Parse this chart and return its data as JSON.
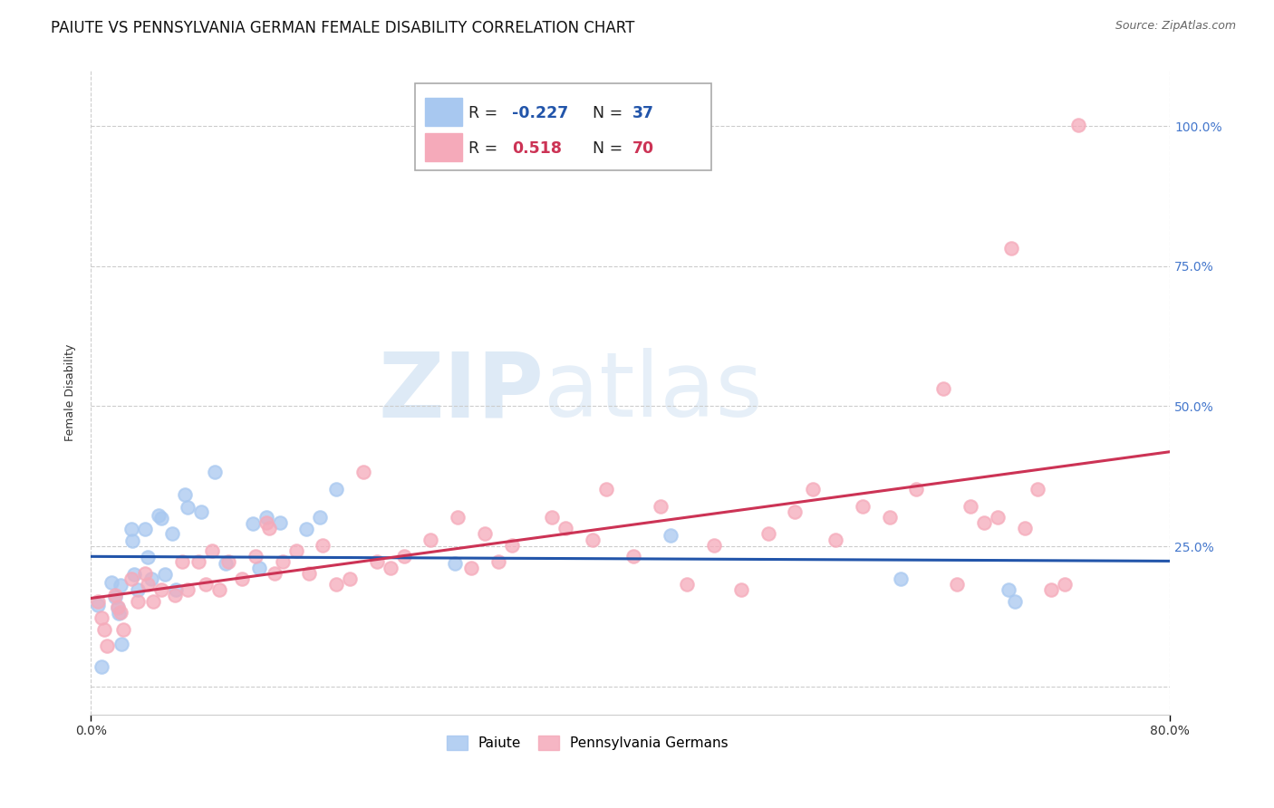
{
  "title": "PAIUTE VS PENNSYLVANIA GERMAN FEMALE DISABILITY CORRELATION CHART",
  "source": "Source: ZipAtlas.com",
  "ylabel": "Female Disability",
  "xlim": [
    0.0,
    0.8
  ],
  "ylim": [
    -0.05,
    1.1
  ],
  "paiute_color": "#A8C8F0",
  "penn_german_color": "#F5AABA",
  "paiute_line_color": "#2255AA",
  "penn_german_line_color": "#CC3355",
  "legend_paiute_label": "Paiute",
  "legend_penn_label": "Pennsylvania Germans",
  "R_paiute": "-0.227",
  "N_paiute": "37",
  "R_penn": "0.518",
  "N_penn": "70",
  "watermark_zip": "ZIP",
  "watermark_atlas": "atlas",
  "y_tick_color": "#4477CC",
  "paiute_x": [
    0.005,
    0.008,
    0.015,
    0.018,
    0.02,
    0.021,
    0.022,
    0.023,
    0.03,
    0.031,
    0.032,
    0.035,
    0.04,
    0.042,
    0.045,
    0.05,
    0.052,
    0.055,
    0.06,
    0.063,
    0.07,
    0.072,
    0.082,
    0.092,
    0.1,
    0.12,
    0.125,
    0.13,
    0.14,
    0.16,
    0.17,
    0.182,
    0.27,
    0.43,
    0.6,
    0.68,
    0.685
  ],
  "paiute_y": [
    0.145,
    0.035,
    0.185,
    0.16,
    0.14,
    0.13,
    0.18,
    0.075,
    0.28,
    0.26,
    0.2,
    0.172,
    0.28,
    0.23,
    0.192,
    0.305,
    0.3,
    0.2,
    0.272,
    0.172,
    0.342,
    0.32,
    0.312,
    0.382,
    0.22,
    0.29,
    0.212,
    0.302,
    0.292,
    0.28,
    0.302,
    0.352,
    0.22,
    0.27,
    0.192,
    0.172,
    0.152
  ],
  "penn_x": [
    0.005,
    0.008,
    0.01,
    0.012,
    0.018,
    0.02,
    0.022,
    0.024,
    0.03,
    0.035,
    0.04,
    0.042,
    0.046,
    0.052,
    0.062,
    0.068,
    0.072,
    0.08,
    0.085,
    0.09,
    0.095,
    0.102,
    0.112,
    0.122,
    0.13,
    0.132,
    0.136,
    0.142,
    0.152,
    0.162,
    0.172,
    0.182,
    0.192,
    0.202,
    0.212,
    0.222,
    0.232,
    0.252,
    0.272,
    0.282,
    0.292,
    0.302,
    0.312,
    0.342,
    0.352,
    0.372,
    0.382,
    0.402,
    0.422,
    0.442,
    0.462,
    0.482,
    0.502,
    0.522,
    0.535,
    0.552,
    0.572,
    0.592,
    0.612,
    0.632,
    0.642,
    0.652,
    0.662,
    0.672,
    0.682,
    0.692,
    0.702,
    0.712,
    0.722,
    0.732
  ],
  "penn_y": [
    0.152,
    0.122,
    0.102,
    0.072,
    0.162,
    0.142,
    0.132,
    0.102,
    0.192,
    0.152,
    0.202,
    0.182,
    0.152,
    0.172,
    0.162,
    0.222,
    0.172,
    0.222,
    0.182,
    0.242,
    0.172,
    0.222,
    0.192,
    0.232,
    0.292,
    0.282,
    0.202,
    0.222,
    0.242,
    0.202,
    0.252,
    0.182,
    0.192,
    0.382,
    0.222,
    0.212,
    0.232,
    0.262,
    0.302,
    0.212,
    0.272,
    0.222,
    0.252,
    0.302,
    0.282,
    0.262,
    0.352,
    0.232,
    0.322,
    0.182,
    0.252,
    0.172,
    0.272,
    0.312,
    0.352,
    0.262,
    0.322,
    0.302,
    0.352,
    0.532,
    0.182,
    0.322,
    0.292,
    0.302,
    0.782,
    0.282,
    0.352,
    0.172,
    0.182,
    1.002
  ],
  "background_color": "#FFFFFF",
  "grid_color": "#CCCCCC",
  "title_fontsize": 12,
  "label_fontsize": 9,
  "tick_fontsize": 10
}
